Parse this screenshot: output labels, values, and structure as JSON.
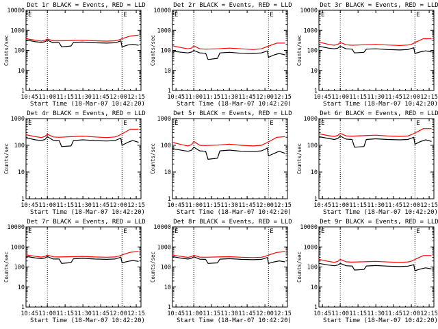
{
  "figure": {
    "x_axis_title": "Start Time (18-Mar-07 10:42:20)",
    "y_axis_title": "Counts/sec",
    "flag_label": "E"
  },
  "colors": {
    "events": "#000000",
    "lld": "#ff0000",
    "axes": "#000000",
    "background": "#ffffff"
  },
  "chart_data": [
    {
      "type": "line",
      "title": "Det 1r BLACK = Events, RED = LLD",
      "ylim": [
        1,
        10000
      ],
      "ylog": true,
      "x_ticks": [
        "10:45",
        "11:00",
        "11:15",
        "11:30",
        "11:45",
        "12:00",
        "12:15"
      ],
      "y_ticks": [
        "1",
        "10",
        "100",
        "1000",
        "10000"
      ],
      "markers_x": [
        "11:00",
        "12:03"
      ],
      "series": [
        {
          "name": "Events",
          "x": [
            "10:42",
            "10:50",
            "10:55",
            "10:58",
            "11:00",
            "11:05",
            "11:10",
            "11:12",
            "11:20",
            "11:22",
            "11:30",
            "11:40",
            "11:50",
            "11:57",
            "12:00",
            "12:02",
            "12:03",
            "12:08",
            "12:12",
            "12:17"
          ],
          "values": [
            330,
            270,
            250,
            270,
            320,
            240,
            240,
            150,
            165,
            250,
            260,
            240,
            230,
            240,
            270,
            300,
            150,
            185,
            200,
            180
          ]
        },
        {
          "name": "LLD",
          "x": [
            "10:42",
            "10:50",
            "10:55",
            "10:58",
            "11:00",
            "11:05",
            "11:10",
            "11:20",
            "11:30",
            "11:40",
            "11:50",
            "11:57",
            "12:00",
            "12:05",
            "12:10",
            "12:17"
          ],
          "values": [
            380,
            320,
            290,
            320,
            370,
            300,
            300,
            310,
            320,
            300,
            290,
            300,
            330,
            420,
            520,
            580
          ]
        }
      ]
    },
    {
      "type": "line",
      "title": "Det 2r BLACK = Events, RED = LLD",
      "ylim": [
        1,
        10000
      ],
      "ylog": true,
      "x_ticks": [
        "10:45",
        "11:00",
        "11:15",
        "11:30",
        "11:45",
        "12:00",
        "12:15"
      ],
      "y_ticks": [
        "1",
        "10",
        "100",
        "1000",
        "10000"
      ],
      "markers_x": [
        "11:00",
        "12:03"
      ],
      "series": [
        {
          "name": "Events",
          "x": [
            "10:42",
            "10:50",
            "10:55",
            "10:58",
            "11:00",
            "11:05",
            "11:10",
            "11:12",
            "11:20",
            "11:22",
            "11:30",
            "11:40",
            "11:50",
            "11:57",
            "12:00",
            "12:02",
            "12:03",
            "12:08",
            "12:12",
            "12:17"
          ],
          "values": [
            90,
            80,
            75,
            82,
            100,
            75,
            72,
            35,
            40,
            75,
            80,
            72,
            70,
            75,
            85,
            95,
            45,
            60,
            70,
            60
          ]
        },
        {
          "name": "LLD",
          "x": [
            "10:42",
            "10:50",
            "10:55",
            "10:58",
            "11:00",
            "11:05",
            "11:10",
            "11:20",
            "11:30",
            "11:40",
            "11:50",
            "11:57",
            "12:00",
            "12:05",
            "12:10",
            "12:17"
          ],
          "values": [
            170,
            135,
            120,
            130,
            170,
            120,
            115,
            120,
            130,
            120,
            110,
            120,
            140,
            180,
            230,
            230
          ]
        }
      ]
    },
    {
      "type": "line",
      "title": "Det 3r BLACK = Events, RED = LLD",
      "ylim": [
        1,
        10000
      ],
      "ylog": true,
      "x_ticks": [
        "10:45",
        "11:00",
        "11:15",
        "11:30",
        "11:45",
        "12:00",
        "12:15"
      ],
      "y_ticks": [
        "1",
        "10",
        "100",
        "1000",
        "10000"
      ],
      "markers_x": [
        "11:00",
        "12:03"
      ],
      "series": [
        {
          "name": "Events",
          "x": [
            "10:42",
            "10:50",
            "10:55",
            "10:58",
            "11:00",
            "11:05",
            "11:10",
            "11:12",
            "11:20",
            "11:22",
            "11:30",
            "11:40",
            "11:50",
            "11:57",
            "12:00",
            "12:02",
            "12:03",
            "12:08",
            "12:12",
            "12:17"
          ],
          "values": [
            160,
            130,
            120,
            130,
            160,
            120,
            115,
            75,
            80,
            115,
            120,
            110,
            105,
            110,
            125,
            135,
            70,
            85,
            95,
            85
          ]
        },
        {
          "name": "LLD",
          "x": [
            "10:42",
            "10:50",
            "10:55",
            "10:58",
            "11:00",
            "11:05",
            "11:10",
            "11:20",
            "11:30",
            "11:40",
            "11:50",
            "11:57",
            "12:00",
            "12:05",
            "12:10",
            "12:17"
          ],
          "values": [
            260,
            200,
            180,
            200,
            250,
            190,
            180,
            190,
            200,
            185,
            175,
            185,
            200,
            280,
            380,
            380
          ]
        }
      ]
    },
    {
      "type": "line",
      "title": "Det 4r BLACK = Events, RED = LLD",
      "ylim": [
        1,
        1000
      ],
      "ylog": true,
      "x_ticks": [
        "10:45",
        "11:00",
        "11:15",
        "11:30",
        "11:45",
        "12:00",
        "12:15"
      ],
      "y_ticks": [
        "1",
        "10",
        "100",
        "1000"
      ],
      "markers_x": [
        "11:00",
        "12:03"
      ],
      "series": [
        {
          "name": "Events",
          "x": [
            "10:42",
            "10:50",
            "10:55",
            "10:58",
            "11:00",
            "11:05",
            "11:10",
            "11:12",
            "11:20",
            "11:22",
            "11:30",
            "11:40",
            "11:50",
            "11:57",
            "12:00",
            "12:02",
            "12:03",
            "12:08",
            "12:12",
            "12:17"
          ],
          "values": [
            190,
            160,
            150,
            165,
            210,
            155,
            150,
            90,
            95,
            150,
            160,
            150,
            145,
            150,
            170,
            185,
            100,
            130,
            150,
            130
          ]
        },
        {
          "name": "LLD",
          "x": [
            "10:42",
            "10:50",
            "10:55",
            "10:58",
            "11:00",
            "11:05",
            "11:10",
            "11:20",
            "11:30",
            "11:40",
            "11:50",
            "11:57",
            "12:00",
            "12:05",
            "12:10",
            "12:17"
          ],
          "values": [
            250,
            210,
            195,
            215,
            260,
            205,
            200,
            210,
            220,
            205,
            195,
            205,
            230,
            300,
            400,
            400
          ]
        }
      ]
    },
    {
      "type": "line",
      "title": "Det 5r BLACK = Events, RED = LLD",
      "ylim": [
        1,
        1000
      ],
      "ylog": true,
      "x_ticks": [
        "10:45",
        "11:00",
        "11:15",
        "11:30",
        "11:45",
        "12:00",
        "12:15"
      ],
      "y_ticks": [
        "1",
        "10",
        "100",
        "1000"
      ],
      "markers_x": [
        "11:00",
        "12:03"
      ],
      "series": [
        {
          "name": "Events",
          "x": [
            "10:42",
            "10:50",
            "10:55",
            "10:58",
            "11:00",
            "11:05",
            "11:10",
            "11:12",
            "11:20",
            "11:22",
            "11:30",
            "11:40",
            "11:50",
            "11:57",
            "12:00",
            "12:02",
            "12:03",
            "12:08",
            "12:12",
            "12:17"
          ],
          "values": [
            75,
            65,
            60,
            65,
            85,
            62,
            60,
            30,
            33,
            62,
            66,
            60,
            58,
            62,
            70,
            80,
            40,
            50,
            60,
            50
          ]
        },
        {
          "name": "LLD",
          "x": [
            "10:42",
            "10:50",
            "10:55",
            "10:58",
            "11:00",
            "11:05",
            "11:10",
            "11:20",
            "11:30",
            "11:40",
            "11:50",
            "11:57",
            "12:00",
            "12:05",
            "12:10",
            "12:17"
          ],
          "values": [
            130,
            105,
            95,
            105,
            140,
            100,
            98,
            102,
            110,
            100,
            95,
            100,
            115,
            150,
            200,
            210
          ]
        }
      ]
    },
    {
      "type": "line",
      "title": "Det 6r BLACK = Events, RED = LLD",
      "ylim": [
        1,
        1000
      ],
      "ylog": true,
      "x_ticks": [
        "10:45",
        "11:00",
        "11:15",
        "11:30",
        "11:45",
        "12:00",
        "12:15"
      ],
      "y_ticks": [
        "1",
        "10",
        "100",
        "1000"
      ],
      "markers_x": [
        "11:00",
        "12:03"
      ],
      "series": [
        {
          "name": "Events",
          "x": [
            "10:42",
            "10:50",
            "10:55",
            "10:58",
            "11:00",
            "11:05",
            "11:10",
            "11:12",
            "11:20",
            "11:22",
            "11:30",
            "11:40",
            "11:50",
            "11:57",
            "12:00",
            "12:02",
            "12:03",
            "12:08",
            "12:12",
            "12:17"
          ],
          "values": [
            210,
            180,
            165,
            180,
            220,
            170,
            165,
            85,
            90,
            165,
            175,
            165,
            160,
            165,
            185,
            200,
            110,
            140,
            160,
            140
          ]
        },
        {
          "name": "LLD",
          "x": [
            "10:42",
            "10:50",
            "10:55",
            "10:58",
            "11:00",
            "11:05",
            "11:10",
            "11:20",
            "11:30",
            "11:40",
            "11:50",
            "11:57",
            "12:00",
            "12:05",
            "12:10",
            "12:17"
          ],
          "values": [
            270,
            230,
            215,
            235,
            280,
            225,
            220,
            230,
            240,
            225,
            215,
            225,
            250,
            320,
            420,
            420
          ]
        }
      ]
    },
    {
      "type": "line",
      "title": "Det 7r BLACK = Events, RED = LLD",
      "ylim": [
        1,
        10000
      ],
      "ylog": true,
      "x_ticks": [
        "10:45",
        "11:00",
        "11:15",
        "11:30",
        "11:45",
        "12:00",
        "12:15"
      ],
      "y_ticks": [
        "1",
        "10",
        "100",
        "1000",
        "10000"
      ],
      "markers_x": [
        "11:00",
        "12:03"
      ],
      "series": [
        {
          "name": "Events",
          "x": [
            "10:42",
            "10:50",
            "10:55",
            "10:58",
            "11:00",
            "11:05",
            "11:10",
            "11:12",
            "11:20",
            "11:22",
            "11:30",
            "11:40",
            "11:50",
            "11:57",
            "12:00",
            "12:02",
            "12:03",
            "12:08",
            "12:12",
            "12:17"
          ],
          "values": [
            340,
            280,
            260,
            280,
            330,
            250,
            250,
            150,
            165,
            255,
            270,
            250,
            240,
            250,
            280,
            310,
            160,
            190,
            210,
            190
          ]
        },
        {
          "name": "LLD",
          "x": [
            "10:42",
            "10:50",
            "10:55",
            "10:58",
            "11:00",
            "11:05",
            "11:10",
            "11:20",
            "11:30",
            "11:40",
            "11:50",
            "11:57",
            "12:00",
            "12:05",
            "12:10",
            "12:17"
          ],
          "values": [
            400,
            340,
            310,
            340,
            390,
            320,
            315,
            325,
            335,
            315,
            305,
            315,
            345,
            440,
            540,
            600
          ]
        }
      ]
    },
    {
      "type": "line",
      "title": "Det 8r BLACK = Events, RED = LLD",
      "ylim": [
        1,
        10000
      ],
      "ylog": true,
      "x_ticks": [
        "10:45",
        "11:00",
        "11:15",
        "11:30",
        "11:45",
        "12:00",
        "12:15"
      ],
      "y_ticks": [
        "1",
        "10",
        "100",
        "1000",
        "10000"
      ],
      "markers_x": [
        "11:00",
        "12:03"
      ],
      "series": [
        {
          "name": "Events",
          "x": [
            "10:42",
            "10:50",
            "10:55",
            "10:58",
            "11:00",
            "11:05",
            "11:10",
            "11:12",
            "11:20",
            "11:22",
            "11:30",
            "11:40",
            "11:50",
            "11:57",
            "12:00",
            "12:02",
            "12:03",
            "12:08",
            "12:12",
            "12:17"
          ],
          "values": [
            330,
            270,
            250,
            270,
            320,
            245,
            240,
            150,
            160,
            245,
            260,
            240,
            230,
            240,
            270,
            300,
            150,
            180,
            200,
            180
          ]
        },
        {
          "name": "LLD",
          "x": [
            "10:42",
            "10:50",
            "10:55",
            "10:58",
            "11:00",
            "11:05",
            "11:10",
            "11:20",
            "11:30",
            "11:40",
            "11:50",
            "11:57",
            "12:00",
            "12:05",
            "12:10",
            "12:17"
          ],
          "values": [
            390,
            330,
            300,
            330,
            380,
            310,
            305,
            315,
            325,
            305,
            295,
            305,
            335,
            430,
            530,
            590
          ]
        }
      ]
    },
    {
      "type": "line",
      "title": "Det 9r BLACK = Events, RED = LLD",
      "ylim": [
        1,
        10000
      ],
      "ylog": true,
      "x_ticks": [
        "10:45",
        "11:00",
        "11:15",
        "11:30",
        "11:45",
        "12:00",
        "12:15"
      ],
      "y_ticks": [
        "1",
        "10",
        "100",
        "1000",
        "10000"
      ],
      "markers_x": [
        "11:00",
        "12:03"
      ],
      "series": [
        {
          "name": "Events",
          "x": [
            "10:42",
            "10:50",
            "10:55",
            "10:58",
            "11:00",
            "11:05",
            "11:10",
            "11:12",
            "11:20",
            "11:22",
            "11:30",
            "11:40",
            "11:50",
            "11:57",
            "12:00",
            "12:02",
            "12:03",
            "12:08",
            "12:12",
            "12:17"
          ],
          "values": [
            150,
            125,
            115,
            125,
            150,
            115,
            112,
            70,
            75,
            112,
            118,
            110,
            105,
            110,
            120,
            130,
            65,
            80,
            90,
            80
          ]
        },
        {
          "name": "LLD",
          "x": [
            "10:42",
            "10:50",
            "10:55",
            "10:58",
            "11:00",
            "11:05",
            "11:10",
            "11:20",
            "11:30",
            "11:40",
            "11:50",
            "11:57",
            "12:00",
            "12:05",
            "12:10",
            "12:17"
          ],
          "values": [
            240,
            190,
            170,
            190,
            240,
            180,
            175,
            182,
            190,
            178,
            168,
            178,
            195,
            270,
            370,
            370
          ]
        }
      ]
    }
  ]
}
